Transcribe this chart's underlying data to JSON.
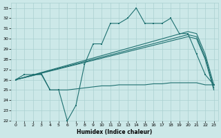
{
  "xlabel": "Humidex (Indice chaleur)",
  "xlim": [
    -0.5,
    23.5
  ],
  "ylim": [
    22,
    33.5
  ],
  "yticks": [
    22,
    23,
    24,
    25,
    26,
    27,
    28,
    29,
    30,
    31,
    32,
    33
  ],
  "xticks": [
    0,
    1,
    2,
    3,
    4,
    5,
    6,
    7,
    8,
    9,
    10,
    11,
    12,
    13,
    14,
    15,
    16,
    17,
    18,
    19,
    20,
    21,
    22,
    23
  ],
  "bg_color": "#cce8e8",
  "line_color": "#1e7070",
  "grid_color": "#aad0d0",
  "main_x": [
    0,
    1,
    2,
    3,
    4,
    5,
    6,
    7,
    8,
    9,
    10,
    11,
    12,
    13,
    14,
    15,
    16,
    17,
    18,
    19,
    20,
    21,
    22,
    23
  ],
  "main_y": [
    26,
    26.5,
    26.5,
    26.5,
    25,
    25,
    22,
    23.5,
    27.5,
    29.5,
    29.5,
    31.5,
    31.5,
    32,
    33,
    31.5,
    31.5,
    31.5,
    32,
    30.5,
    30.5,
    28.5,
    26.5,
    25.5
  ],
  "upper_x": [
    0,
    20,
    21,
    22,
    23
  ],
  "upper_y": [
    26,
    30.7,
    30.5,
    28.5,
    25.5
  ],
  "lower_x": [
    0,
    20,
    21,
    22,
    23
  ],
  "lower_y": [
    26,
    30.2,
    30.0,
    28.0,
    25.0
  ],
  "mid_x": [
    0,
    20,
    21,
    22,
    23
  ],
  "mid_y": [
    26,
    30.4,
    30.2,
    28.2,
    25.2
  ],
  "flat_x": [
    0,
    1,
    2,
    3,
    4,
    5,
    6,
    7,
    8,
    9,
    10,
    11,
    12,
    13,
    14,
    15,
    16,
    17,
    18,
    19,
    20,
    21,
    22,
    23
  ],
  "flat_y": [
    26,
    26.2,
    26.4,
    26.6,
    25.0,
    25.0,
    25.0,
    25.1,
    25.2,
    25.3,
    25.4,
    25.4,
    25.5,
    25.5,
    25.5,
    25.5,
    25.6,
    25.6,
    25.7,
    25.7,
    25.7,
    25.7,
    25.5,
    25.5
  ]
}
